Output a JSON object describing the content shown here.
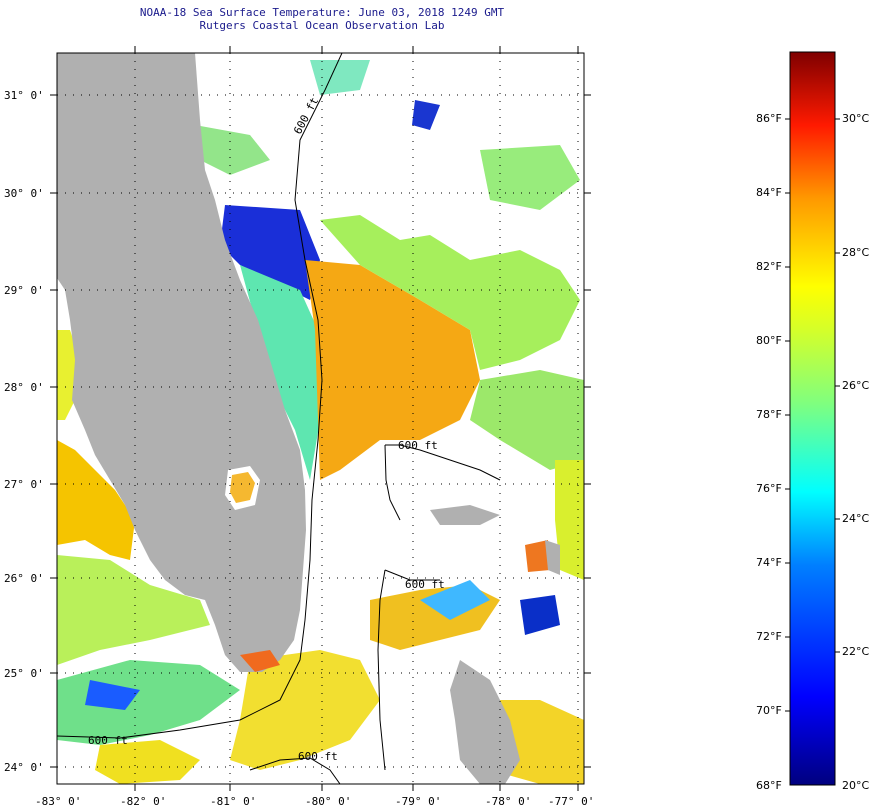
{
  "title": "NOAA-18 Sea Surface Temperature:  June 03, 2018 1249 GMT",
  "subtitle": "Rutgers Coastal Ocean Observation Lab",
  "lat_labels": [
    "31° 0'",
    "30° 0'",
    "29° 0'",
    "28° 0'",
    "27° 0'",
    "26° 0'",
    "25° 0'",
    "24° 0'"
  ],
  "lon_labels": [
    "-83° 0'",
    "-82° 0'",
    "-81° 0'",
    "-80° 0'",
    "-79° 0'",
    "-78° 0'",
    "-77° 0'"
  ],
  "isobath_labels": [
    "600 ft",
    "600 ft",
    "600 ft",
    "600 ft",
    "600 ft"
  ],
  "colorbar": {
    "fahrenheit": [
      "86°F",
      "84°F",
      "82°F",
      "80°F",
      "78°F",
      "76°F",
      "74°F",
      "72°F",
      "70°F",
      "68°F"
    ],
    "celsius": [
      "30°C",
      "28°C",
      "26°C",
      "24°C",
      "22°C",
      "20°C"
    ],
    "colors": [
      "#00007f",
      "#0000ff",
      "#007fff",
      "#00ffff",
      "#7fff7f",
      "#ffff00",
      "#ff7f00",
      "#ff0000",
      "#7f0000"
    ]
  },
  "colors": {
    "land": "#b0b0b0",
    "grid": "#000000",
    "frame": "#000000"
  }
}
